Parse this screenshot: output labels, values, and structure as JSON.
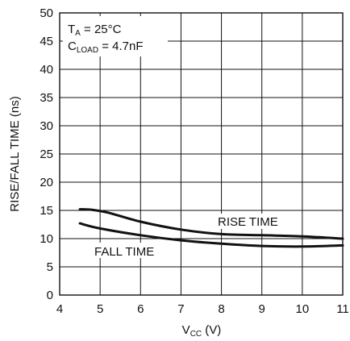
{
  "chart_data": {
    "type": "line",
    "xlabel": {
      "main": "V",
      "sub": "CC",
      "unit": " (V)"
    },
    "ylabel": "RISE/FALL TIME (ns)",
    "xlim": [
      4,
      11
    ],
    "ylim": [
      0,
      50
    ],
    "x_ticks": [
      4,
      5,
      6,
      7,
      8,
      9,
      10,
      11
    ],
    "y_ticks": [
      0,
      5,
      10,
      15,
      20,
      25,
      30,
      35,
      40,
      45,
      50
    ],
    "grid": true,
    "conditions": [
      {
        "main": "T",
        "sub": "A",
        "rest": " = 25°C"
      },
      {
        "main": "C",
        "sub": "LOAD",
        "rest": " = 4.7nF"
      }
    ],
    "series": [
      {
        "name": "RISE TIME",
        "x": [
          4.5,
          4.8,
          5.2,
          6.0,
          7.0,
          8.0,
          9.0,
          10.0,
          11.0
        ],
        "y": [
          15.2,
          15.1,
          14.6,
          13.0,
          11.6,
          10.8,
          10.6,
          10.4,
          10.0
        ]
      },
      {
        "name": "FALL TIME",
        "x": [
          4.5,
          5.0,
          6.0,
          7.0,
          8.0,
          9.0,
          10.0,
          11.0
        ],
        "y": [
          12.7,
          11.8,
          10.6,
          9.7,
          9.1,
          8.7,
          8.6,
          8.8
        ]
      }
    ]
  }
}
